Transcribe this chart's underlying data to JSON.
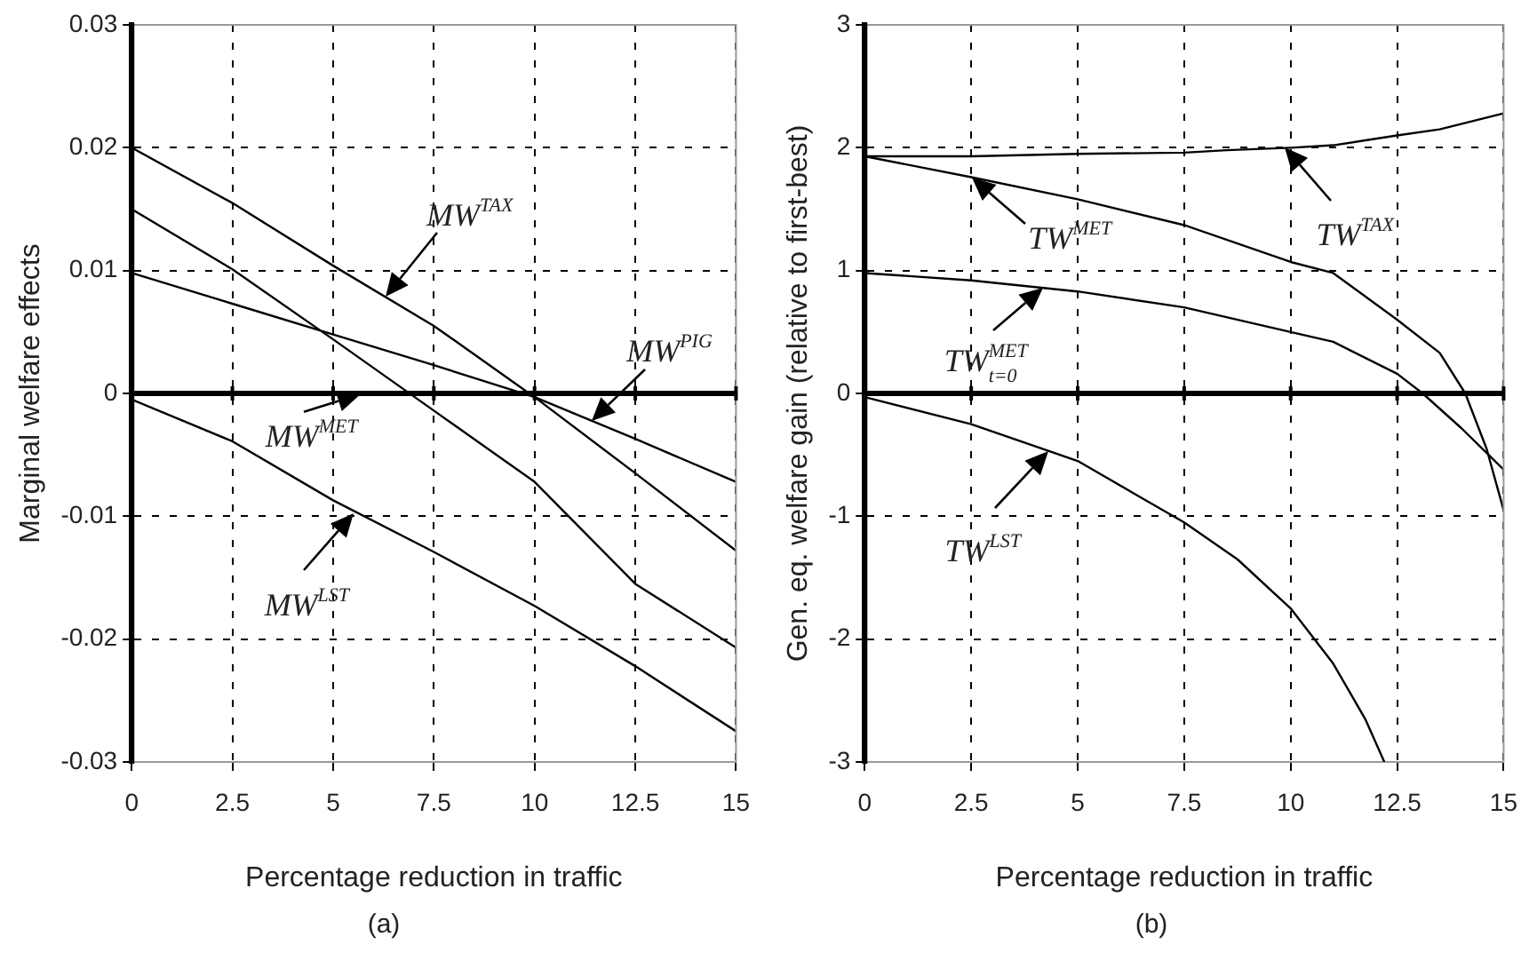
{
  "chart_data": [
    {
      "type": "line",
      "xlabel": "Percentage reduction in traffic",
      "ylabel": "Marginal welfare effects",
      "x": [
        0,
        2.5,
        5,
        7.5,
        10,
        12.5,
        15
      ],
      "series": [
        {
          "color": "#000000",
          "values": [
            0.02,
            0.0155,
            0.0104,
            0.0055,
            -0.0003,
            -0.0065,
            -0.0128
          ]
        },
        {
          "color": "#000000",
          "values": [
            0.015,
            0.0101,
            0.0044,
            -0.0014,
            -0.0072,
            -0.0155,
            -0.0207
          ]
        },
        {
          "color": "#000000",
          "values": [
            0.0098,
            0.0073,
            0.0048,
            0.0023,
            -0.0003,
            -0.0037,
            -0.0072
          ]
        },
        {
          "color": "#000000",
          "values": [
            -0.0005,
            -0.0039,
            -0.0087,
            -0.0129,
            -0.0173,
            -0.0222,
            -0.0275
          ]
        }
      ],
      "xlim": [
        0,
        15
      ],
      "xticks": [
        0,
        2.5,
        5,
        7.5,
        10,
        12.5,
        15
      ],
      "ylim": [
        -0.03,
        0.03
      ],
      "yticks": [
        -0.03,
        -0.02,
        -0.01,
        0,
        0.01,
        0.02,
        0.03
      ],
      "grid": true,
      "legend": false,
      "marker": "none",
      "line_style": "solid",
      "ref_lines": [
        {
          "axis": "y",
          "value": 0,
          "color": "#000000"
        }
      ],
      "annotations": [
        {
          "text": "MW$^{TAX}$",
          "x": 6.3,
          "y": 0.0079
        },
        {
          "text": "MW$^{MET}$",
          "x": 5.7,
          "y": 0
        },
        {
          "text": "MW$^{PIG}$",
          "x": 11.4,
          "y": -0.0022
        },
        {
          "text": "MW$^{LST}$",
          "x": 5.5,
          "y": -0.0097
        },
        "(a)"
      ]
    },
    {
      "type": "line",
      "xlabel": "Percentage reduction in traffic",
      "ylabel": "Gen. eq. welfare gain (relative to first-best)",
      "series": [
        {
          "color": "#000000",
          "x": [
            0,
            2.5,
            5,
            7.5,
            8.5,
            10,
            11,
            12.5,
            13.5,
            15
          ],
          "values": [
            1.93,
            1.93,
            1.95,
            1.96,
            1.98,
            2.0,
            2.02,
            2.1,
            2.15,
            2.28
          ]
        },
        {
          "color": "#000000",
          "x": [
            0,
            2.5,
            5,
            7.5,
            10,
            11,
            12.5,
            13.5,
            14.1,
            14.6,
            15
          ],
          "values": [
            1.93,
            1.76,
            1.58,
            1.37,
            1.07,
            0.98,
            0.6,
            0.33,
            0,
            -0.45,
            -0.95
          ]
        },
        {
          "color": "#000000",
          "x": [
            0,
            2.5,
            5,
            7.5,
            10,
            11,
            12.5,
            13.1,
            14,
            15
          ],
          "values": [
            0.98,
            0.92,
            0.83,
            0.7,
            0.5,
            0.42,
            0.16,
            0,
            -0.28,
            -0.62
          ]
        },
        {
          "color": "#000000",
          "x": [
            0,
            2.5,
            5,
            6.25,
            7.5,
            8.75,
            10,
            11,
            11.75,
            12.2
          ],
          "values": [
            -0.03,
            -0.25,
            -0.55,
            -0.8,
            -1.05,
            -1.35,
            -1.75,
            -2.2,
            -2.65,
            -3.0
          ]
        }
      ],
      "xlim": [
        0,
        15
      ],
      "xticks": [
        0,
        2.5,
        5,
        7.5,
        10,
        12.5,
        15
      ],
      "ylim": [
        -3,
        3
      ],
      "yticks": [
        -3,
        -2,
        -1,
        0,
        1,
        2,
        3
      ],
      "grid": true,
      "legend": false,
      "marker": "none",
      "line_style": "solid",
      "ref_lines": [
        {
          "axis": "y",
          "value": 0,
          "color": "#000000"
        }
      ],
      "annotations": [
        {
          "text": "TW$^{TAX}$",
          "x": 9.85,
          "y": 2.0
        },
        {
          "text": "TW$^{MET}$",
          "x": 2.5,
          "y": 1.76
        },
        {
          "text": "TW$^{MET}$$_{t=0}$",
          "x": 4.2,
          "y": 0.86
        },
        {
          "text": "TW$^{LST}$",
          "x": 4.3,
          "y": -0.47
        },
        "(b)"
      ]
    }
  ]
}
